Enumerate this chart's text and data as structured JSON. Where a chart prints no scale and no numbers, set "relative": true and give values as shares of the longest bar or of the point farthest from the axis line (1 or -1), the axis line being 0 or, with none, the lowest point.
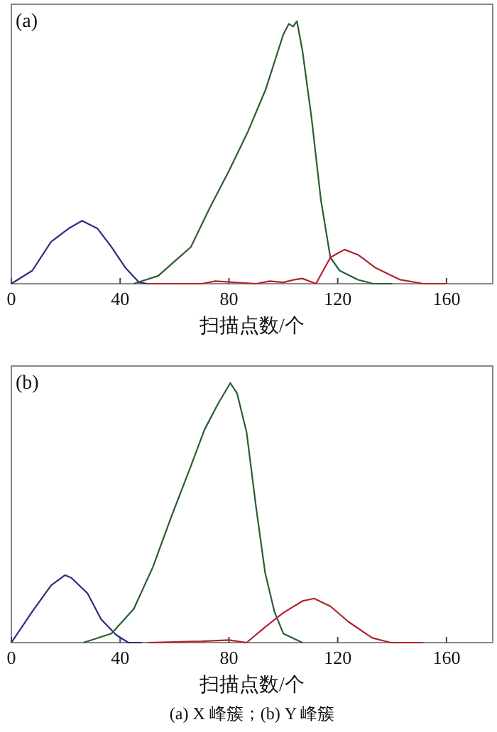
{
  "chart_data": [
    {
      "type": "line",
      "relative": true,
      "xlabel": "扫描点数/个",
      "xlim": [
        0,
        177
      ],
      "xticks": [
        0,
        40,
        80,
        120,
        160
      ],
      "grid": false,
      "annotations": [
        "(a)"
      ],
      "series": [
        {
          "color": "#2b2b86",
          "x": [
            0,
            7.7,
            14.6,
            21,
            26,
            31.7,
            36.8,
            42,
            47,
            50
          ],
          "values": [
            0,
            0.05,
            0.16,
            0.21,
            0.24,
            0.21,
            0.14,
            0.06,
            0.005,
            0
          ]
        },
        {
          "color": "#2a5e30",
          "x": [
            45,
            54,
            66,
            73,
            80,
            87,
            93.5,
            100,
            102,
            103.6,
            105,
            107,
            110.4,
            113.8,
            117.3,
            120.7,
            127.5,
            133,
            140
          ],
          "values": [
            0,
            0.03,
            0.14,
            0.29,
            0.43,
            0.58,
            0.74,
            0.95,
            0.99,
            0.98,
            1,
            0.89,
            0.63,
            0.32,
            0.1,
            0.05,
            0.015,
            0,
            0
          ]
        },
        {
          "color": "#b02530",
          "x": [
            50,
            70,
            75,
            90,
            95,
            100,
            104,
            107,
            112,
            117.3,
            119,
            122.5,
            127.5,
            134,
            143,
            151.5,
            160
          ],
          "values": [
            0,
            0,
            0.01,
            0,
            0.01,
            0.005,
            0.015,
            0.02,
            0,
            0.1,
            0.11,
            0.13,
            0.11,
            0.06,
            0.015,
            0,
            0
          ]
        }
      ]
    },
    {
      "type": "line",
      "relative": true,
      "xlabel": "扫描点数/个",
      "xlim": [
        0,
        177
      ],
      "xticks": [
        0,
        40,
        80,
        120,
        160
      ],
      "grid": false,
      "annotations": [
        "(b)",
        "(a) X 峰簇；(b) Y 峰簇"
      ],
      "series": [
        {
          "color": "#2b2b86",
          "x": [
            0,
            7.7,
            14.6,
            19.7,
            22,
            28,
            33,
            38.5,
            43,
            48
          ],
          "values": [
            0,
            0.12,
            0.22,
            0.26,
            0.25,
            0.19,
            0.09,
            0.03,
            0,
            0
          ]
        },
        {
          "color": "#2a5e30",
          "x": [
            26.5,
            36.8,
            45,
            52,
            59,
            66,
            71,
            76,
            80.5,
            83,
            86.5,
            90,
            93.3,
            96.7,
            100,
            107
          ],
          "values": [
            0,
            0.035,
            0.13,
            0.29,
            0.49,
            0.68,
            0.82,
            0.92,
            1,
            0.96,
            0.81,
            0.52,
            0.27,
            0.12,
            0.035,
            0
          ]
        },
        {
          "color": "#b02530",
          "x": [
            50,
            70,
            80,
            86.5,
            93.3,
            100,
            107,
            111.3,
            117.3,
            124,
            132.7,
            139.5,
            151.5
          ],
          "values": [
            0,
            0.005,
            0.01,
            0,
            0.06,
            0.115,
            0.16,
            0.17,
            0.14,
            0.08,
            0.018,
            0,
            0
          ]
        }
      ]
    }
  ]
}
